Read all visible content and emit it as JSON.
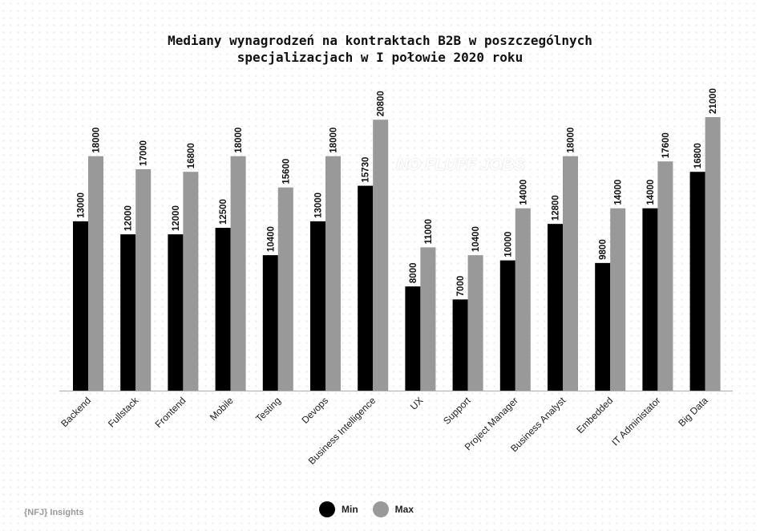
{
  "title_lines": [
    "Mediany wynagrodzeń na kontraktach B2B w poszczególnych",
    "specjalizacjach w I połowie 2020 roku"
  ],
  "watermark": "NO FLUFF JOBS",
  "brand": "{NFJ} Insights",
  "colors": {
    "min": "#000000",
    "max": "#999999",
    "axis": "#b5b5b5"
  },
  "chart_data": {
    "type": "bar",
    "title": "Mediany wynagrodzeń na kontraktach B2B w poszczególnych specjalizacjach w I połowie 2020 roku",
    "categories": [
      "Backend",
      "Fullstack",
      "Frontend",
      "Mobile",
      "Testing",
      "Devops",
      "Business Intelligence",
      "UX",
      "Support",
      "Project Manager",
      "Business Analyst",
      "Embedded",
      "IT Administator",
      "Big Data"
    ],
    "series": [
      {
        "name": "Min",
        "color": "#000000",
        "values": [
          13000,
          12000,
          12000,
          12500,
          10400,
          13000,
          15730,
          8000,
          7000,
          10000,
          12800,
          9800,
          14000,
          16800
        ]
      },
      {
        "name": "Max",
        "color": "#999999",
        "values": [
          18000,
          17000,
          16800,
          18000,
          15600,
          18000,
          20800,
          11000,
          10400,
          14000,
          18000,
          14000,
          17600,
          21000
        ]
      }
    ],
    "ylim": [
      0,
      21000
    ],
    "grid": false,
    "legend": "bottom-center"
  }
}
